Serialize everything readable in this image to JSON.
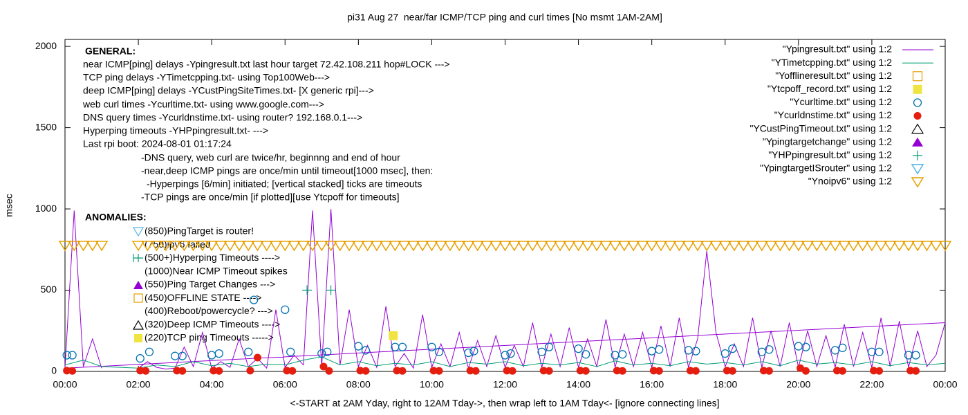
{
  "chart_data": {
    "type": "line",
    "title": "pi31 Aug 27  near/far ICMP/TCP ping and curl times [No msmt 1AM-2AM]",
    "xlabel": "<-START at 2AM Yday, right to 12AM Tday->, then wrap left to 1AM Tday<- [ignore connecting lines]",
    "ylabel": "msec",
    "xlim": [
      0,
      24
    ],
    "ylim": [
      0,
      2043
    ],
    "xticks": [
      {
        "value": 0,
        "label": "00:00"
      },
      {
        "value": 2,
        "label": "02:00"
      },
      {
        "value": 4,
        "label": "04:00"
      },
      {
        "value": 6,
        "label": "06:00"
      },
      {
        "value": 8,
        "label": "08:00"
      },
      {
        "value": 10,
        "label": "10:00"
      },
      {
        "value": 12,
        "label": "12:00"
      },
      {
        "value": 14,
        "label": "14:00"
      },
      {
        "value": 16,
        "label": "16:00"
      },
      {
        "value": 18,
        "label": "18:00"
      },
      {
        "value": 20,
        "label": "20:00"
      },
      {
        "value": 22,
        "label": "22:00"
      },
      {
        "value": 24,
        "label": "00:00"
      }
    ],
    "yticks": [
      0,
      500,
      1000,
      1500,
      2000
    ],
    "legend": "top-right",
    "annotations": {
      "general_title": "GENERAL:",
      "general": [
        "near ICMP[ping] delays -Ypingresult.txt last hour target 72.42.108.211 hop#LOCK --->",
        "TCP ping delays -YTimetcpping.txt- using Top100Web--->",
        "deep ICMP[ping] delays -YCustPingSiteTimes.txt- [X generic rpi]--->",
        "web curl times -Ycurltime.txt- using www.google.com--->",
        "DNS query times -Ycurldnstime.txt- using router? 192.168.0.1--->",
        "Hyperping timeouts -YHPpingresult.txt- --->",
        "Last rpi boot: 2024-08-01 01:17:24",
        "-DNS query, web curl are twice/hr, beginnng and end of hour",
        "-near,deep ICMP pings are once/min until timeout[1000 msec], then:",
        "-Hyperpings [6/min] initiated; [vertical stacked] ticks are timeouts",
        "-TCP pings are once/min [if plotted][use Ytcpoff for timeouts]"
      ],
      "anomalies_title": "ANOMALIES:",
      "anomalies": [
        "(850)PingTarget is router!",
        "(750)ipv6 failed",
        "(500+)Hyperping Timeouts ---->",
        "(1000)Near ICMP Timeout spikes",
        "(550)Ping Target Changes --->",
        "(450)OFFLINE STATE ---->",
        "(400)Reboot/powercycle? --->",
        "(320)Deep ICMP Timeouts ---->",
        "(220)TCP ping Timeouts ----->"
      ]
    },
    "series": [
      {
        "name": "\"Ypingresult.txt\" using 1:2",
        "color": "#9400d3",
        "marker": "line",
        "x": [
          2,
          2.25,
          2.5,
          2.75,
          3,
          3.25,
          3.5,
          3.75,
          4,
          4.25,
          4.5,
          4.75,
          5,
          5.25,
          5.5,
          5.75,
          6,
          6.25,
          6.5,
          6.75,
          7,
          7.25,
          7.5,
          7.75,
          8,
          8.25,
          8.5,
          8.75,
          9,
          9.25,
          9.5,
          9.75,
          10,
          10.25,
          10.5,
          10.75,
          11,
          11.25,
          11.5,
          11.75,
          12,
          12.25,
          12.5,
          12.75,
          13,
          13.25,
          13.5,
          13.75,
          14,
          14.25,
          14.5,
          14.75,
          15,
          15.25,
          15.5,
          15.75,
          16,
          16.25,
          16.5,
          16.75,
          17,
          17.25,
          17.5,
          17.75,
          18,
          18.25,
          18.5,
          18.75,
          19,
          19.25,
          19.5,
          19.75,
          20,
          20.25,
          20.5,
          20.75,
          21,
          21.25,
          21.5,
          21.75,
          22,
          22.25,
          22.5,
          22.75,
          23,
          23.25,
          23.5,
          23.75,
          24,
          0,
          0.25,
          0.5,
          0.75,
          1
        ],
        "values": [
          20,
          60,
          25,
          15,
          20,
          150,
          30,
          240,
          20,
          60,
          25,
          200,
          30,
          80,
          20,
          380,
          25,
          100,
          40,
          990,
          30,
          1000,
          40,
          380,
          30,
          160,
          25,
          400,
          30,
          110,
          20,
          350,
          25,
          170,
          30,
          240,
          20,
          190,
          30,
          220,
          25,
          160,
          30,
          300,
          25,
          230,
          30,
          270,
          25,
          200,
          30,
          320,
          25,
          230,
          30,
          240,
          25,
          280,
          30,
          330,
          25,
          200,
          740,
          240,
          30,
          170,
          30,
          330,
          25,
          250,
          30,
          300,
          25,
          250,
          30,
          220,
          25,
          290,
          30,
          240,
          25,
          330,
          30,
          310,
          25,
          250,
          30,
          100,
          300,
          20,
          990,
          30,
          200,
          20
        ]
      },
      {
        "name": "\"YTimetcpping.txt\" using 1:2",
        "color": "#009e73",
        "marker": "line",
        "x": [
          0,
          0.5,
          1,
          1.5,
          2,
          2.5,
          3,
          3.5,
          4,
          4.5,
          5,
          5.5,
          6,
          6.5,
          7,
          7.5,
          8,
          8.5,
          9,
          9.5,
          10,
          10.5,
          11,
          11.5,
          12,
          12.5,
          13,
          13.5,
          14,
          14.5,
          15,
          15.5,
          16,
          16.5,
          17,
          17.5,
          18,
          18.5,
          19,
          19.5,
          20,
          20.5,
          21,
          21.5,
          22,
          22.5,
          23,
          23.5,
          24
        ],
        "values": [
          40,
          70,
          30,
          25,
          20,
          40,
          30,
          60,
          35,
          50,
          30,
          45,
          40,
          70,
          90,
          40,
          60,
          35,
          50,
          40,
          60,
          30,
          55,
          45,
          60,
          35,
          50,
          40,
          55,
          30,
          65,
          40,
          50,
          35,
          60,
          45,
          55,
          40,
          60,
          35,
          70,
          45,
          55,
          40,
          60,
          35,
          55,
          40,
          50
        ]
      },
      {
        "name": "\"Yofflineresult.txt\" using 1:2",
        "color": "#e69f00",
        "marker": "square-open",
        "x": [],
        "values": []
      },
      {
        "name": "\"Ytcpoff_record.txt\" using 1:2",
        "color": "#f0e442",
        "marker": "square-filled",
        "x": [
          8.95
        ],
        "values": [
          220
        ]
      },
      {
        "name": "\"Ycurltime.txt\" using 1:2",
        "color": "#0072b2",
        "marker": "circle-open",
        "x": [
          0.05,
          0.2,
          2.05,
          2.3,
          3,
          3.2,
          4,
          4.2,
          5,
          5.15,
          6,
          6.15,
          7,
          7.15,
          8,
          8.2,
          9,
          9.2,
          10,
          10.2,
          11,
          11.15,
          12,
          12.15,
          13,
          13.2,
          14,
          14.2,
          15,
          15.2,
          16,
          16.2,
          17,
          17.2,
          18,
          18.2,
          19,
          19.2,
          20,
          20.2,
          21,
          21.2,
          22,
          22.2,
          23,
          23.2
        ],
        "values": [
          100,
          100,
          80,
          120,
          95,
          95,
          100,
          110,
          120,
          440,
          380,
          120,
          110,
          120,
          155,
          130,
          150,
          150,
          150,
          120,
          115,
          125,
          100,
          110,
          120,
          150,
          140,
          105,
          100,
          105,
          125,
          135,
          130,
          125,
          110,
          140,
          120,
          135,
          155,
          150,
          130,
          145,
          120,
          120,
          100,
          100
        ]
      },
      {
        "name": "\"Ycurldnstime.txt\" using 1:2",
        "color": "#e51e10",
        "marker": "circle-filled",
        "x": [
          0.05,
          0.2,
          2.05,
          2.2,
          3.05,
          3.2,
          4.05,
          4.2,
          5.05,
          5.25,
          6.05,
          6.2,
          7.05,
          7.2,
          8.05,
          8.2,
          9.05,
          9.2,
          10.05,
          10.2,
          11.05,
          11.2,
          12.05,
          12.2,
          13.05,
          13.2,
          14.05,
          14.2,
          15.05,
          15.2,
          16.05,
          16.2,
          17.05,
          17.2,
          18.05,
          18.2,
          19.05,
          19.2,
          20.05,
          20.2,
          21.05,
          21.2,
          22.05,
          22.2,
          23.05,
          23.2
        ],
        "values": [
          5,
          3,
          5,
          3,
          5,
          3,
          5,
          3,
          5,
          85,
          5,
          3,
          30,
          3,
          5,
          3,
          5,
          3,
          5,
          3,
          5,
          3,
          5,
          3,
          5,
          3,
          5,
          3,
          5,
          3,
          5,
          3,
          5,
          3,
          5,
          3,
          5,
          3,
          20,
          3,
          5,
          3,
          5,
          3,
          5,
          3
        ]
      },
      {
        "name": "\"YCustPingTimeout.txt\" using 1:2",
        "color": "#000000",
        "marker": "triangle-open",
        "x": [],
        "values": []
      },
      {
        "name": "\"Ypingtargetchange\" using 1:2",
        "color": "#9400d3",
        "marker": "triangle-filled",
        "x": [],
        "values": []
      },
      {
        "name": "\"YHPpingresult.txt\" using 1:2",
        "color": "#009e73",
        "marker": "plus",
        "x": [
          6.6,
          7.25
        ],
        "values": [
          500,
          500
        ]
      },
      {
        "name": "\"YpingtargetISrouter\" using 1:2",
        "color": "#56b4e9",
        "marker": "triangle-down-open",
        "x": [],
        "values": []
      },
      {
        "name": "\"Ynoipv6\" using 1:2",
        "color": "#e69f00",
        "marker": "triangle-down-open",
        "x": [
          0,
          0.25,
          0.5,
          0.75,
          1,
          2,
          2.25,
          2.5,
          2.75,
          3,
          3.25,
          3.5,
          3.75,
          4,
          4.25,
          4.5,
          4.75,
          5,
          5.25,
          5.5,
          5.75,
          6,
          6.25,
          6.5,
          6.75,
          7,
          7.25,
          7.5,
          7.75,
          8,
          8.25,
          8.5,
          8.75,
          9,
          9.25,
          9.5,
          9.75,
          10,
          10.25,
          10.5,
          10.75,
          11,
          11.25,
          11.5,
          11.75,
          12,
          12.25,
          12.5,
          12.75,
          13,
          13.25,
          13.5,
          13.75,
          14,
          14.25,
          14.5,
          14.75,
          15,
          15.25,
          15.5,
          15.75,
          16,
          16.25,
          16.5,
          16.75,
          17,
          17.25,
          17.5,
          17.75,
          18,
          18.25,
          18.5,
          18.75,
          19,
          19.25,
          19.5,
          19.75,
          20,
          20.25,
          20.5,
          20.75,
          21,
          21.25,
          21.5,
          21.75,
          22,
          22.25,
          22.5,
          22.75,
          23,
          23.25,
          23.5,
          23.75,
          24
        ],
        "values": [
          775,
          775,
          775,
          775,
          775,
          775,
          775,
          775,
          775,
          775,
          775,
          775,
          775,
          775,
          775,
          775,
          775,
          775,
          775,
          775,
          775,
          775,
          775,
          775,
          775,
          775,
          775,
          775,
          775,
          775,
          775,
          775,
          775,
          775,
          775,
          775,
          775,
          775,
          775,
          775,
          775,
          775,
          775,
          775,
          775,
          775,
          775,
          775,
          775,
          775,
          775,
          775,
          775,
          775,
          775,
          775,
          775,
          775,
          775,
          775,
          775,
          775,
          775,
          775,
          775,
          775,
          775,
          775,
          775,
          775,
          775,
          775,
          775,
          775,
          775,
          775,
          775,
          775,
          775,
          775,
          775,
          775,
          775,
          775,
          775,
          775,
          775,
          775,
          775,
          775,
          775,
          775,
          775,
          775
        ]
      }
    ]
  }
}
